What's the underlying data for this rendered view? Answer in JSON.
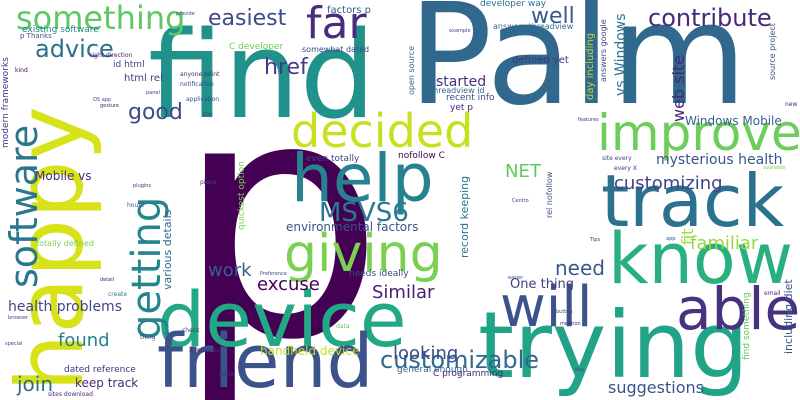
{
  "words": [
    {
      "id": "p",
      "text": "p",
      "color": "#440154"
    },
    {
      "id": "palm",
      "text": "Palm",
      "color": "#31688e"
    },
    {
      "id": "find",
      "text": "find",
      "color": "#21918c"
    },
    {
      "id": "happy",
      "text": "happy",
      "color": "#d8e219"
    },
    {
      "id": "trying",
      "text": "trying",
      "color": "#20a386"
    },
    {
      "id": "device",
      "text": "device",
      "color": "#22a884"
    },
    {
      "id": "friend",
      "text": "friend",
      "color": "#3b528b"
    },
    {
      "id": "know",
      "text": "know",
      "color": "#2ab07f"
    },
    {
      "id": "track",
      "text": "track",
      "color": "#2c728e"
    },
    {
      "id": "help",
      "text": "help",
      "color": "#26828e"
    },
    {
      "id": "will",
      "text": "will",
      "color": "#3b528b"
    },
    {
      "id": "able",
      "text": "able",
      "color": "#46327e"
    },
    {
      "id": "improve",
      "text": "improve",
      "color": "#6ccd5a"
    },
    {
      "id": "giving",
      "text": "giving",
      "color": "#7ad151"
    },
    {
      "id": "decided",
      "text": "decided",
      "color": "#c8e020"
    },
    {
      "id": "software",
      "text": "software",
      "color": "#2a788e"
    },
    {
      "id": "getting",
      "text": "getting",
      "color": "#25848e"
    },
    {
      "id": "far",
      "text": "far",
      "color": "#472d7b"
    },
    {
      "id": "something",
      "text": "something",
      "color": "#5ec962"
    },
    {
      "id": "advice",
      "text": "advice",
      "color": "#2e6f8e"
    },
    {
      "id": "contribute",
      "text": "contribute",
      "color": "#482878"
    },
    {
      "id": "customizable",
      "text": "customizable",
      "color": "#31688e"
    },
    {
      "id": "msvs6",
      "text": "MSVS6",
      "color": "#2a788e"
    },
    {
      "id": "easiest",
      "text": "easiest",
      "color": "#3e4a89"
    },
    {
      "id": "good",
      "text": "good",
      "color": "#3e4a89"
    },
    {
      "id": "href",
      "text": "href",
      "color": "#443983"
    },
    {
      "id": "well",
      "text": "well",
      "color": "#38588c"
    },
    {
      "id": "customizing",
      "text": "customizing",
      "color": "#414487"
    },
    {
      "id": "familiar",
      "text": "familiar",
      "color": "#98d83e"
    },
    {
      "id": "need",
      "text": "need",
      "color": "#38588c"
    },
    {
      "id": "work",
      "text": "work",
      "color": "#355f8d"
    },
    {
      "id": "excuse",
      "text": "excuse",
      "color": "#440154"
    },
    {
      "id": "similar",
      "text": "Similar",
      "color": "#482173"
    },
    {
      "id": "found",
      "text": "found",
      "color": "#27808e"
    },
    {
      "id": "join",
      "text": "join",
      "color": "#31688e"
    },
    {
      "id": "looking",
      "text": "looking",
      "color": "#3e4c8a"
    },
    {
      "id": "suggestions",
      "text": "suggestions",
      "color": "#3b528b"
    },
    {
      "id": "net",
      "text": "NET",
      "color": "#5ec962"
    },
    {
      "id": "started",
      "text": "started",
      "color": "#46327e"
    },
    {
      "id": "web-site",
      "text": "web site",
      "color": "#482575"
    },
    {
      "id": "vs-windows",
      "text": "vs Windows",
      "color": "#2c728e"
    },
    {
      "id": "windows-mobile",
      "text": "Windows Mobile",
      "color": "#355f8d"
    },
    {
      "id": "mysterious-health",
      "text": "mysterious health",
      "color": "#3b528b"
    },
    {
      "id": "fit",
      "text": "fit",
      "color": "#a5db36"
    },
    {
      "id": "health-problems",
      "text": "health problems",
      "color": "#414487"
    },
    {
      "id": "keep-track",
      "text": "keep track",
      "color": "#482878"
    },
    {
      "id": "environmental-factors",
      "text": "environmental factors",
      "color": "#3b528b"
    },
    {
      "id": "mobile-vs",
      "text": "Mobile vs",
      "color": "#472d7b"
    },
    {
      "id": "one-thing",
      "text": "One thing",
      "color": "#433e85"
    },
    {
      "id": "handheld-device",
      "text": "handheld device",
      "color": "#bddf26"
    },
    {
      "id": "modern-frameworks",
      "text": "modern frameworks",
      "color": "#453882"
    },
    {
      "id": "various-details",
      "text": "various details",
      "color": "#31688e"
    },
    {
      "id": "record-keeping",
      "text": "record keeping",
      "color": "#2a788e"
    },
    {
      "id": "factors-p",
      "text": "factors p",
      "color": "#365c8d"
    },
    {
      "id": "developer-way",
      "text": "developer way",
      "color": "#2c728e"
    },
    {
      "id": "existing-software",
      "text": "existing software",
      "color": "#26828e"
    },
    {
      "id": "c-developer",
      "text": "C developer",
      "color": "#6ccd5a"
    },
    {
      "id": "somewhat-dated",
      "text": "somewhat dated",
      "color": "#414487"
    },
    {
      "id": "html-rel",
      "text": "html rel",
      "color": "#453882"
    },
    {
      "id": "id-html",
      "text": "id html",
      "color": "#404688"
    },
    {
      "id": "open-source",
      "text": "open source",
      "color": "#32648e"
    },
    {
      "id": "defined-yet",
      "text": "defined yet",
      "color": "#46327e"
    },
    {
      "id": "recent-info",
      "text": "recent info",
      "color": "#3e4989"
    },
    {
      "id": "threadview-id",
      "text": "threadview id",
      "color": "#2e6e8e"
    },
    {
      "id": "yet-p",
      "text": "yet p",
      "color": "#482475"
    },
    {
      "id": "even-totally",
      "text": "even totally",
      "color": "#3f4788"
    },
    {
      "id": "nofollow-c",
      "text": "nofollow C",
      "color": "#440154"
    },
    {
      "id": "needs-ideally",
      "text": "needs ideally",
      "color": "#3e4a89"
    },
    {
      "id": "totally-defined",
      "text": "totally defined",
      "color": "#7ad151"
    },
    {
      "id": "dated-reference",
      "text": "dated reference",
      "color": "#46327e"
    },
    {
      "id": "general-enough",
      "text": "general enough",
      "color": "#31688e"
    },
    {
      "id": "c-programming",
      "text": "C programming",
      "color": "#482878"
    },
    {
      "id": "quickest-option",
      "text": "quickest option",
      "color": "#7ad151"
    },
    {
      "id": "day-including",
      "text": "day including",
      "color": "#b5de2b"
    },
    {
      "id": "answers-google",
      "text": "answers google",
      "color": "#414487"
    },
    {
      "id": "answers-threadview",
      "text": "answers threadview",
      "color": "#2e6e8e"
    },
    {
      "id": "source-project",
      "text": "source project",
      "color": "#3b528b"
    },
    {
      "id": "including-diet",
      "text": "including diet",
      "color": "#3b528b"
    },
    {
      "id": "find-something",
      "text": "find something",
      "color": "#5ec962"
    },
    {
      "id": "rel-nofollow",
      "text": "rel nofollow",
      "color": "#3b528b"
    },
    {
      "id": "anyone-point",
      "text": "anyone point",
      "color": "#482878"
    },
    {
      "id": "notification",
      "text": "notification",
      "color": "#3e4a89"
    },
    {
      "id": "application",
      "text": "application",
      "color": "#3f4788"
    },
    {
      "id": "right-direction",
      "text": "right direction",
      "color": "#482475"
    },
    {
      "id": "p-thanks",
      "text": "p Thanks",
      "color": "#3b528b"
    },
    {
      "id": "x-minutes",
      "text": "X minutes",
      "color": "#482878"
    },
    {
      "id": "sites-download",
      "text": "sites download",
      "color": "#482475"
    },
    {
      "id": "site-every",
      "text": "site every",
      "color": "#414487"
    },
    {
      "id": "every-x",
      "text": "every X",
      "color": "#46327e"
    },
    {
      "id": "provide",
      "text": "provide",
      "color": "#414487"
    },
    {
      "id": "example",
      "text": "example",
      "color": "#3e4989"
    },
    {
      "id": "kind",
      "text": "kind",
      "color": "#440154"
    },
    {
      "id": "piece",
      "text": "piece",
      "color": "#3e4a89"
    },
    {
      "id": "done",
      "text": "done",
      "color": "#472d7b"
    },
    {
      "id": "create",
      "text": "create",
      "color": "#2a788e"
    },
    {
      "id": "check",
      "text": "check",
      "color": "#453882"
    },
    {
      "id": "thing",
      "text": "thing",
      "color": "#3e4a89"
    },
    {
      "id": "data",
      "text": "data",
      "color": "#5ec962"
    },
    {
      "id": "hours",
      "text": "hours",
      "color": "#3b528b"
    },
    {
      "id": "email",
      "text": "email",
      "color": "#482878"
    },
    {
      "id": "top",
      "text": "top",
      "color": "#3e4a89"
    },
    {
      "id": "new",
      "text": "new",
      "color": "#482878"
    },
    {
      "id": "panel",
      "text": "panel",
      "color": "#414487"
    },
    {
      "id": "easier",
      "text": "easier",
      "color": "#3b528b"
    },
    {
      "id": "special",
      "text": "special",
      "color": "#3e4989"
    },
    {
      "id": "available",
      "text": "available",
      "color": "#7ad151"
    },
    {
      "id": "centro",
      "text": "Centro",
      "color": "#3e4989"
    },
    {
      "id": "features",
      "text": "features",
      "color": "#46327e"
    },
    {
      "id": "os-app",
      "text": "OS app",
      "color": "#414487"
    },
    {
      "id": "gesture",
      "text": "gesture",
      "color": "#482475"
    },
    {
      "id": "plugins",
      "text": "plugins",
      "color": "#46327e"
    },
    {
      "id": "preference",
      "text": "Preference",
      "color": "#3e4a89"
    },
    {
      "id": "mention",
      "text": "mention",
      "color": "#482878"
    },
    {
      "id": "button",
      "text": "button",
      "color": "#3e4989"
    },
    {
      "id": "browser",
      "text": "browser",
      "color": "#414487"
    },
    {
      "id": "detail",
      "text": "detail",
      "color": "#482475"
    },
    {
      "id": "tips",
      "text": "Tips",
      "color": "#46327e"
    },
    {
      "id": "app",
      "text": "app",
      "color": "#3e4989"
    },
    {
      "id": "day",
      "text": "day",
      "color": "#414487"
    }
  ]
}
